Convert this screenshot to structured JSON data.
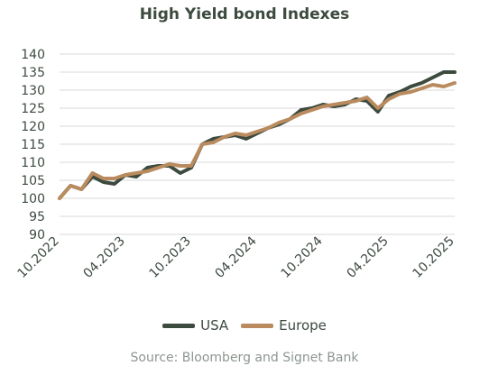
{
  "chart_data": {
    "type": "line",
    "title": "High Yield bond Indexes",
    "xlabel": "",
    "ylabel": "",
    "ylim": [
      90,
      140
    ],
    "yticks": [
      90,
      95,
      100,
      105,
      110,
      115,
      120,
      125,
      130,
      135,
      140
    ],
    "xlim": [
      "10.2022",
      "10.2025"
    ],
    "xticks": [
      "10.2022",
      "04.2023",
      "10.2023",
      "04.2024",
      "10.2024",
      "04.2025",
      "10.2025"
    ],
    "grid": "horizontal",
    "legend_position": "bottom",
    "x": [
      "10.2022",
      "11.2022",
      "12.2022",
      "01.2023",
      "02.2023",
      "03.2023",
      "04.2023",
      "05.2023",
      "06.2023",
      "07.2023",
      "08.2023",
      "09.2023",
      "10.2023",
      "11.2023",
      "12.2023",
      "01.2024",
      "02.2024",
      "03.2024",
      "04.2024",
      "05.2024",
      "06.2024",
      "07.2024",
      "08.2024",
      "09.2024",
      "10.2024",
      "11.2024",
      "12.2024",
      "01.2025",
      "02.2025",
      "03.2025",
      "04.2025",
      "05.2025",
      "06.2025",
      "07.2025",
      "08.2025",
      "09.2025",
      "10.2025"
    ],
    "series": [
      {
        "name": "USA",
        "color": "#3d4a3e",
        "values": [
          100,
          103.5,
          102.5,
          106,
          104.5,
          104,
          106.5,
          106,
          108.5,
          109,
          109,
          107,
          108.5,
          115,
          116.5,
          117,
          117.5,
          116.5,
          118,
          119.5,
          120.5,
          122,
          124.5,
          125,
          126,
          125.5,
          126,
          127.5,
          127,
          124,
          128.5,
          129.5,
          131,
          132,
          133.5,
          135,
          135
        ]
      },
      {
        "name": "Europe",
        "color": "#b98b5e",
        "values": [
          100,
          103.5,
          102.5,
          107,
          105.5,
          105.5,
          106.5,
          107,
          107.5,
          108.5,
          109.5,
          109,
          109,
          115,
          115.5,
          117,
          118,
          117.5,
          118.5,
          119.5,
          121,
          122,
          123.5,
          124.5,
          125.5,
          126,
          126.5,
          127,
          128,
          125,
          127.5,
          129,
          129.5,
          130.5,
          131.5,
          131,
          132
        ]
      }
    ]
  },
  "legend": {
    "items": [
      {
        "label": "USA",
        "color": "#3d4a3e"
      },
      {
        "label": "Europe",
        "color": "#b98b5e"
      }
    ]
  },
  "source": "Source: Bloomberg and Signet Bank",
  "colors": {
    "text": "#3c4a3f",
    "grid": "#d9d9d9",
    "source": "#8c9690"
  }
}
